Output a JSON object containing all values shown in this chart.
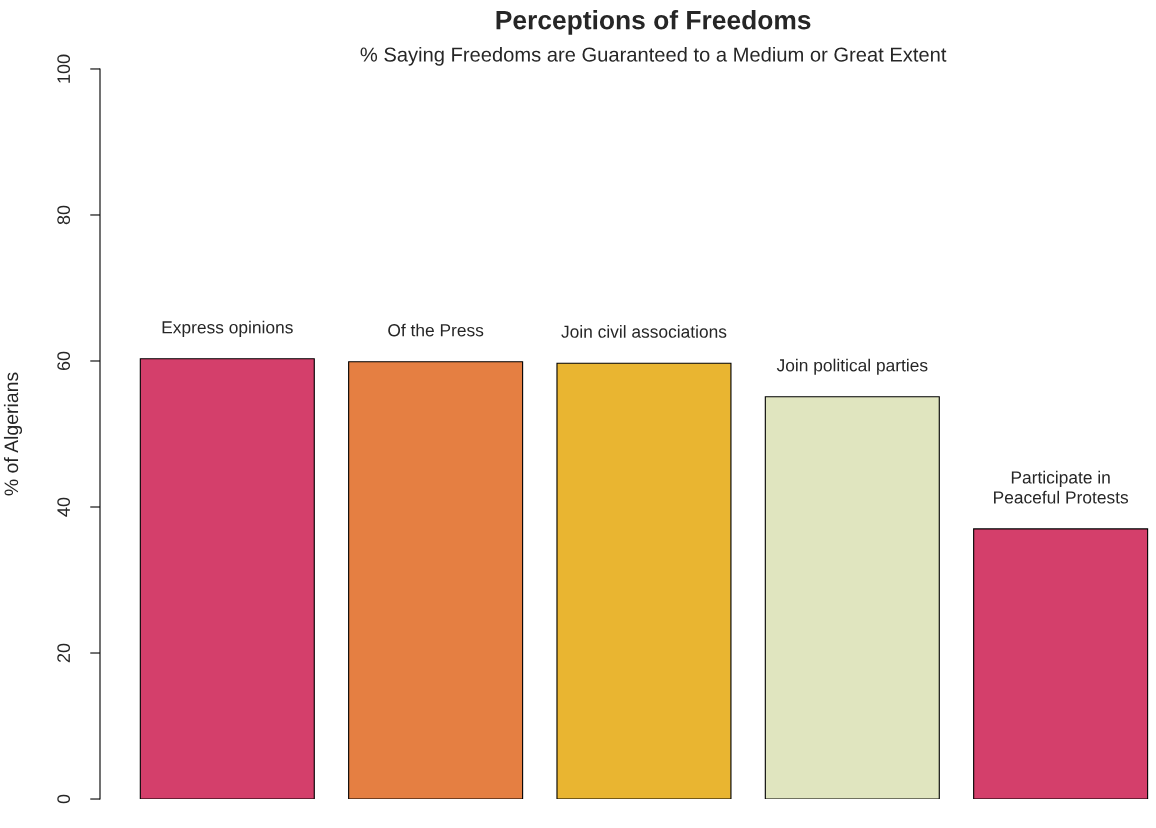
{
  "chart_data": {
    "type": "bar",
    "title": "Perceptions of Freedoms",
    "subtitle": "% Saying Freedoms are Guaranteed to a Medium or Great Extent",
    "ylabel": "% of Algerians",
    "categories": [
      "Express opinions",
      "Of the Press",
      "Join civil associations",
      "Join political parties",
      "Participate in\nPeaceful Protests"
    ],
    "values": [
      60.3,
      59.9,
      59.7,
      55.1,
      37.0
    ],
    "colors": [
      "#d43f6b",
      "#e57f42",
      "#e9b531",
      "#e0e5bf",
      "#d43f6b"
    ],
    "ylim": [
      0,
      100
    ],
    "yticks": [
      0,
      20,
      40,
      60,
      80,
      100
    ],
    "grid": false
  }
}
